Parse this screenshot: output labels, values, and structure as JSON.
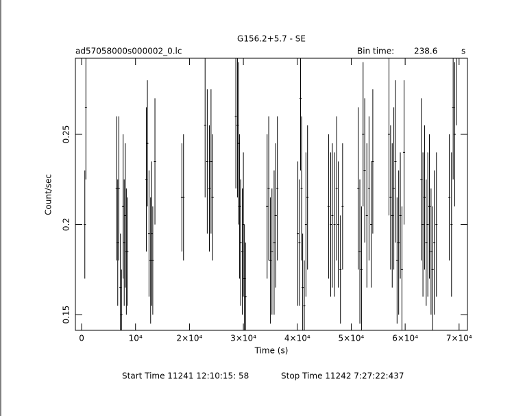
{
  "chart_data": {
    "type": "errorbar",
    "title": "G156.2+5.7 - SE",
    "subtitle": "ad57058000s000002_0.lc",
    "bin_time_label": "Bin time:",
    "bin_time": 238.6,
    "bin_time_unit": "s",
    "xlabel": "Time (s)",
    "ylabel": "Count/sec",
    "start_time": "Start Time 11241 12:10:15: 58",
    "stop_time": "Stop Time 11242  7:27:22:437",
    "color": "#000000",
    "xlim": [
      -1150,
      71550
    ],
    "ylim": [
      0.1413,
      0.2922
    ],
    "xticks": [
      0,
      {
        "value": 10000,
        "label": "10⁴"
      },
      {
        "value": 20000,
        "label": "2×10⁴"
      },
      {
        "value": 30000,
        "label": "3×10⁴"
      },
      {
        "value": 40000,
        "label": "4×10⁴"
      },
      {
        "value": 50000,
        "label": "5×10⁴"
      },
      {
        "value": 60000,
        "label": "6×10⁴"
      },
      {
        "value": 70000,
        "label": "7×10⁴"
      }
    ],
    "yticks": [
      0.15,
      0.2,
      0.25
    ],
    "x": [
      600,
      800,
      6500,
      6700,
      6900,
      7200,
      7400,
      7700,
      7900,
      8100,
      8300,
      8500,
      12000,
      12200,
      12500,
      12800,
      13000,
      13200,
      13600,
      18600,
      18900,
      22900,
      23300,
      23700,
      24000,
      24300,
      28600,
      28900,
      29100,
      29300,
      29500,
      29800,
      30000,
      30200,
      30400,
      34400,
      34700,
      35000,
      35300,
      35700,
      36000,
      36300,
      40100,
      40400,
      40600,
      40800,
      41000,
      41300,
      41600,
      41900,
      45800,
      46200,
      46500,
      46900,
      47300,
      47600,
      48000,
      48400,
      51300,
      51600,
      51900,
      52200,
      52500,
      52900,
      53300,
      53700,
      54000,
      57000,
      57300,
      57600,
      57900,
      58200,
      58500,
      58800,
      59100,
      59400,
      59800,
      63000,
      63300,
      63600,
      63900,
      64200,
      64500,
      64800,
      65100,
      65400,
      65800,
      68200,
      68600,
      68900,
      69200,
      69500
    ],
    "values": [
      0.2,
      0.265,
      0.22,
      0.19,
      0.22,
      0.165,
      0.15,
      0.21,
      0.19,
      0.205,
      0.185,
      0.185,
      0.225,
      0.245,
      0.195,
      0.18,
      0.195,
      0.18,
      0.235,
      0.215,
      0.215,
      0.255,
      0.235,
      0.22,
      0.235,
      0.215,
      0.26,
      0.255,
      0.245,
      0.21,
      0.19,
      0.185,
      0.2,
      0.17,
      0.16,
      0.21,
      0.22,
      0.18,
      0.185,
      0.19,
      0.205,
      0.22,
      0.195,
      0.19,
      0.27,
      0.22,
      0.165,
      0.155,
      0.2,
      0.215,
      0.21,
      0.2,
      0.205,
      0.2,
      0.22,
      0.2,
      0.175,
      0.21,
      0.22,
      0.185,
      0.175,
      0.25,
      0.23,
      0.205,
      0.22,
      0.2,
      0.235,
      0.25,
      0.215,
      0.205,
      0.22,
      0.235,
      0.18,
      0.19,
      0.205,
      0.175,
      0.24,
      0.225,
      0.2,
      0.215,
      0.19,
      0.2,
      0.21,
      0.185,
      0.175,
      0.19,
      0.2,
      0.215,
      0.2,
      0.265,
      0.25,
      0.295
    ],
    "errors": [
      0.03,
      0.04,
      0.04,
      0.035,
      0.04,
      0.03,
      0.025,
      0.04,
      0.035,
      0.04,
      0.035,
      0.03,
      0.04,
      0.035,
      0.035,
      0.035,
      0.04,
      0.03,
      0.035,
      0.03,
      0.035,
      0.04,
      0.04,
      0.035,
      0.04,
      0.035,
      0.04,
      0.04,
      0.045,
      0.04,
      0.035,
      0.035,
      0.04,
      0.03,
      0.03,
      0.04,
      0.04,
      0.035,
      0.035,
      0.04,
      0.04,
      0.04,
      0.04,
      0.035,
      0.04,
      0.04,
      0.03,
      0.025,
      0.04,
      0.04,
      0.04,
      0.04,
      0.04,
      0.04,
      0.04,
      0.035,
      0.03,
      0.035,
      0.045,
      0.04,
      0.035,
      0.04,
      0.04,
      0.04,
      0.04,
      0.035,
      0.04,
      0.045,
      0.04,
      0.04,
      0.045,
      0.045,
      0.035,
      0.04,
      0.035,
      0.035,
      0.04,
      0.045,
      0.04,
      0.04,
      0.035,
      0.04,
      0.04,
      0.035,
      0.035,
      0.04,
      0.04,
      0.035,
      0.04,
      0.04,
      0.04,
      0.04
    ]
  }
}
